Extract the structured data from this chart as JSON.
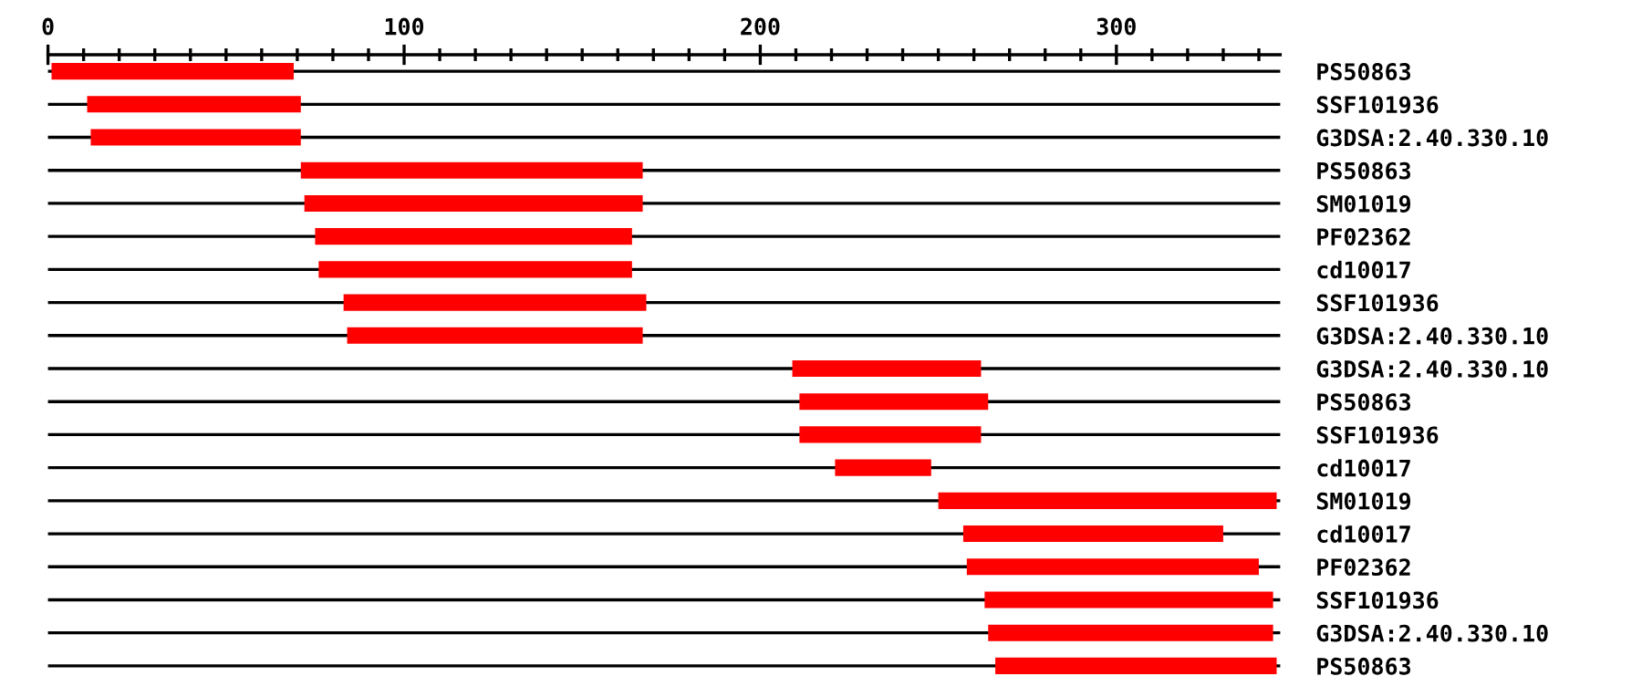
{
  "chart_data": {
    "type": "bar",
    "orientation": "horizontal",
    "grid": "y",
    "categories": [
      "PS50863",
      "SSF101936",
      "G3DSA:2.40.330.10",
      "PS50863",
      "SM01019",
      "PF02362",
      "cd10017",
      "SSF101936",
      "G3DSA:2.40.330.10",
      "G3DSA:2.40.330.10",
      "PS50863",
      "SSF101936",
      "cd10017",
      "SM01019",
      "cd10017",
      "PF02362",
      "SSF101936",
      "G3DSA:2.40.330.10",
      "PS50863"
    ],
    "base": [
      1,
      11,
      12,
      71,
      72,
      75,
      76,
      83,
      84,
      209,
      211,
      211,
      221,
      250,
      257,
      258,
      263,
      264,
      266
    ],
    "values": [
      68,
      60,
      59,
      96,
      95,
      89,
      88,
      85,
      83,
      53,
      53,
      51,
      27,
      95,
      73,
      82,
      81,
      80,
      79
    ],
    "color": "#ff0000",
    "xlim": [
      0,
      346
    ],
    "xticks": [
      0,
      {
        "value": 10,
        "label": null
      },
      {
        "value": 20,
        "label": null
      },
      {
        "value": 30,
        "label": null
      },
      {
        "value": 40,
        "label": null
      },
      {
        "value": 50,
        "label": null
      },
      {
        "value": 60,
        "label": null
      },
      {
        "value": 70,
        "label": null
      },
      {
        "value": 80,
        "label": null
      },
      {
        "value": 90,
        "label": null
      },
      100,
      {
        "value": 110,
        "label": null
      },
      {
        "value": 120,
        "label": null
      },
      {
        "value": 130,
        "label": null
      },
      {
        "value": 140,
        "label": null
      },
      {
        "value": 150,
        "label": null
      },
      {
        "value": 160,
        "label": null
      },
      {
        "value": 170,
        "label": null
      },
      {
        "value": 180,
        "label": null
      },
      {
        "value": 190,
        "label": null
      },
      200,
      {
        "value": 210,
        "label": null
      },
      {
        "value": 220,
        "label": null
      },
      {
        "value": 230,
        "label": null
      },
      {
        "value": 240,
        "label": null
      },
      {
        "value": 250,
        "label": null
      },
      {
        "value": 260,
        "label": null
      },
      {
        "value": 270,
        "label": null
      },
      {
        "value": 280,
        "label": null
      },
      {
        "value": 290,
        "label": null
      },
      300,
      {
        "value": 310,
        "label": null
      },
      {
        "value": 320,
        "label": null
      },
      {
        "value": 330,
        "label": null
      },
      {
        "value": 340,
        "label": null
      }
    ]
  }
}
